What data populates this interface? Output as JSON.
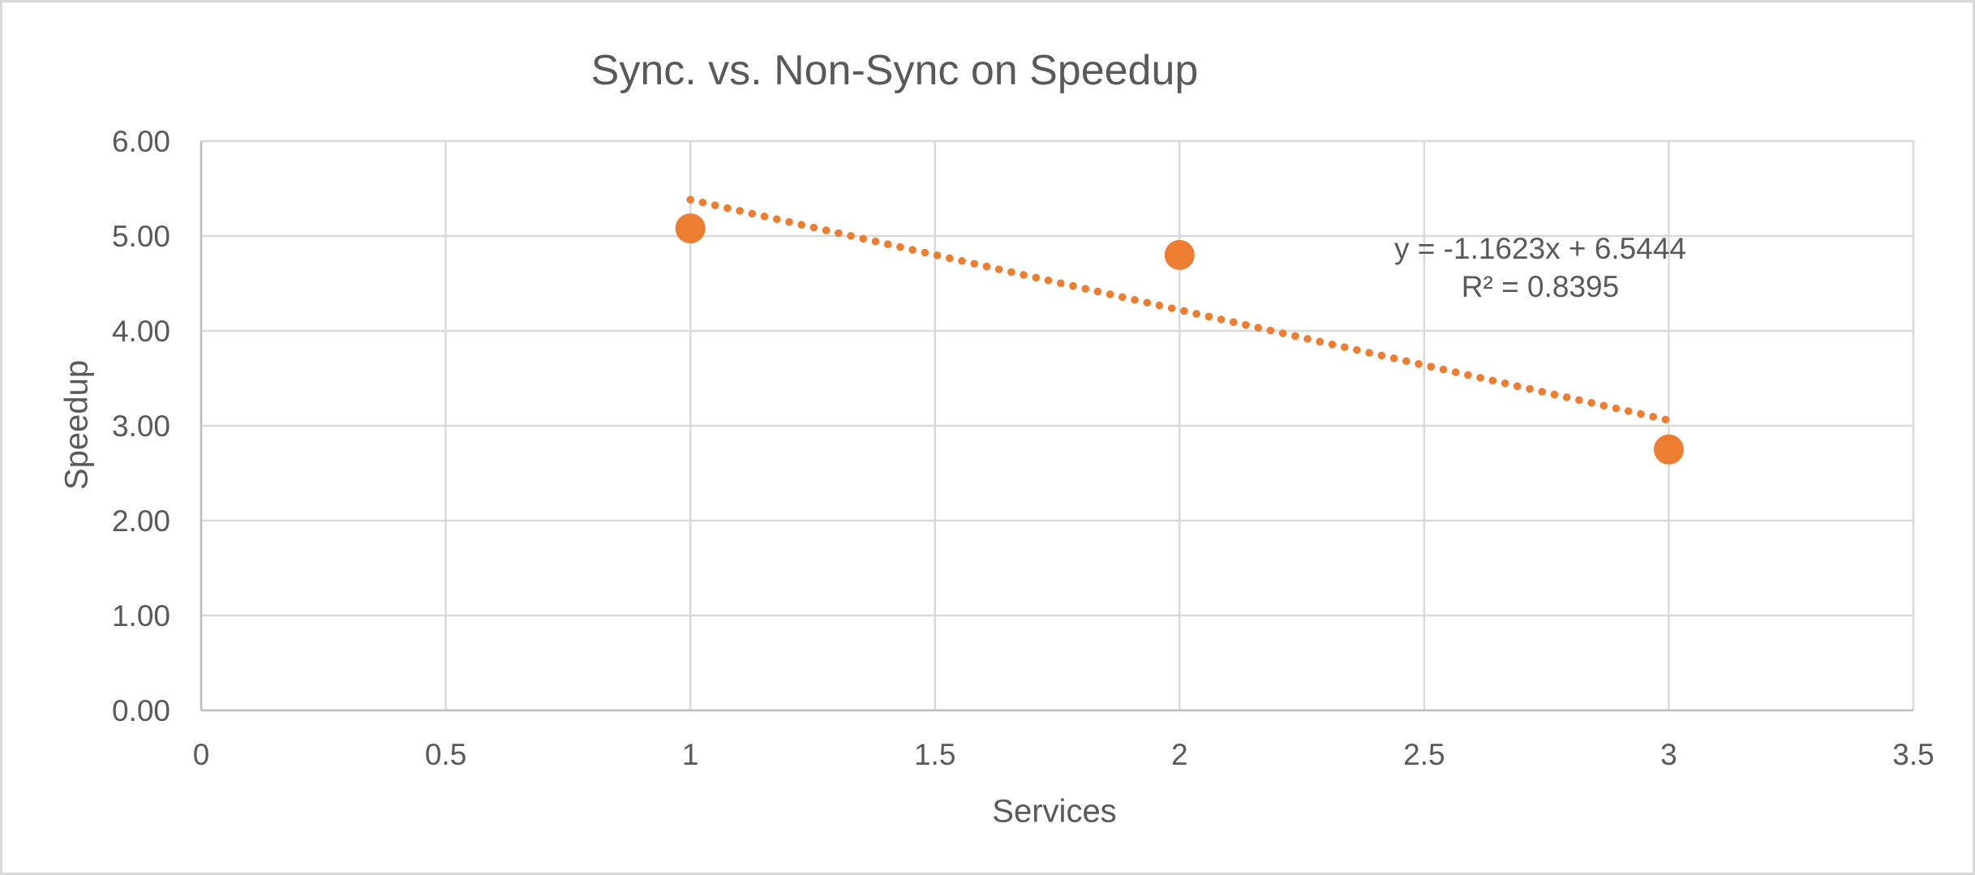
{
  "chart_data": {
    "type": "scatter",
    "title": "Sync. vs. Non-Sync on Speedup",
    "xlabel": "Services",
    "ylabel": "Speedup",
    "xlim": [
      0,
      3.5
    ],
    "ylim": [
      0,
      6
    ],
    "grid": true,
    "legend": "none",
    "x_ticks": [
      0,
      0.5,
      1,
      1.5,
      2,
      2.5,
      3,
      3.5
    ],
    "x_tick_labels": [
      "0",
      "0.5",
      "1",
      "1.5",
      "2",
      "2.5",
      "3",
      "3.5"
    ],
    "y_ticks": [
      0,
      1,
      2,
      3,
      4,
      5,
      6
    ],
    "y_tick_labels": [
      "0.00",
      "1.00",
      "2.00",
      "3.00",
      "4.00",
      "5.00",
      "6.00"
    ],
    "series": [
      {
        "name": "Speedup",
        "points": [
          [
            1,
            5.08
          ],
          [
            2,
            4.8
          ],
          [
            3,
            2.75
          ]
        ],
        "marker": "circle",
        "marker_color": "#ED7D31"
      }
    ],
    "trendline": {
      "type": "linear",
      "slope": -1.1623,
      "intercept": 6.5444,
      "r_squared": 0.8395,
      "x_start": 1,
      "x_end": 3,
      "style": "dotted",
      "color": "#ED7D31",
      "equation_text": "y = -1.1623x + 6.5444",
      "r2_text": "R² = 0.8395"
    }
  },
  "colors": {
    "accent_orange": "#ED7D31",
    "gridline": "#D9D9D9",
    "axis_line": "#BFBFBF",
    "text_gray": "#595959",
    "canvas_border": "#D9D9D9",
    "background": "#FFFFFF"
  }
}
